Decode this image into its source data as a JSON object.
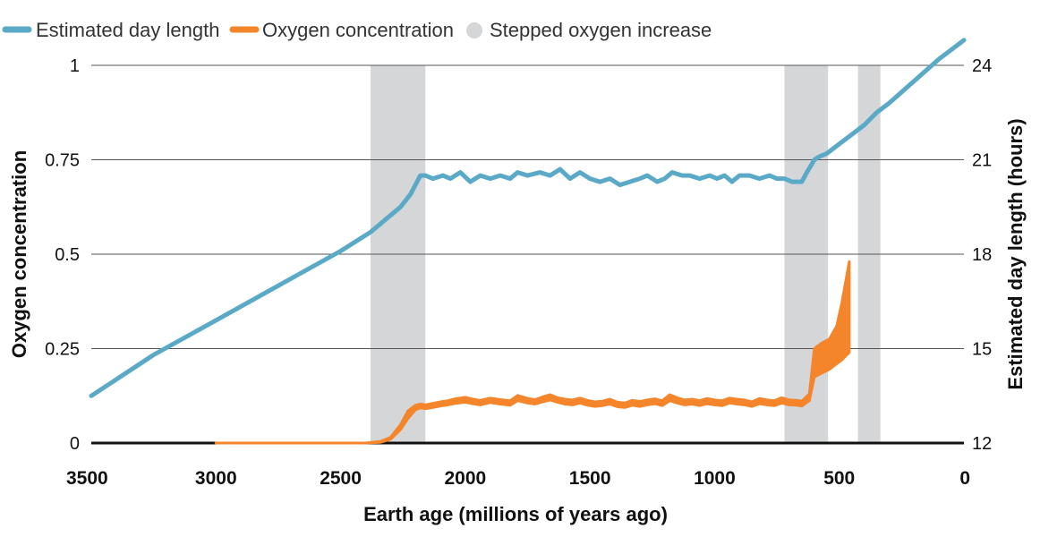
{
  "chart_data": {
    "type": "line",
    "title": "",
    "legend": [
      {
        "label": "Estimated day length",
        "color": "#5aa9c6",
        "shape": "line"
      },
      {
        "label": "Oxygen concentration",
        "color": "#f5852a",
        "shape": "line"
      },
      {
        "label": "Stepped oxygen increase",
        "color": "#d5d6d8",
        "shape": "circle"
      }
    ],
    "legend_position": "top-left",
    "xlabel": "Earth age (millions of years ago)",
    "ylabel_left": "Oxygen concentration",
    "ylabel_right": "Estimated day length (hours)",
    "xlim": [
      3500,
      0
    ],
    "xticks": [
      {
        "value": 3500,
        "label": "3500"
      },
      {
        "value": 3000,
        "label": "3000"
      },
      {
        "value": 2500,
        "label": "2500"
      },
      {
        "value": 2000,
        "label": "2000"
      },
      {
        "value": 1500,
        "label": "1500"
      },
      {
        "value": 1000,
        "label": "1000"
      },
      {
        "value": 500,
        "label": "500"
      },
      {
        "value": 0,
        "label": "0"
      }
    ],
    "ylim_left": [
      0,
      1
    ],
    "yticks_left": [
      {
        "value": 0,
        "label": "0"
      },
      {
        "value": 0.25,
        "label": "0.25"
      },
      {
        "value": 0.5,
        "label": "0.5"
      },
      {
        "value": 0.75,
        "label": "0.75"
      },
      {
        "value": 1,
        "label": "1"
      }
    ],
    "ylim_right": [
      12,
      24
    ],
    "yticks_right": [
      {
        "value": 12,
        "label": "12"
      },
      {
        "value": 15,
        "label": "15"
      },
      {
        "value": 18,
        "label": "18"
      },
      {
        "value": 21,
        "label": "21"
      },
      {
        "value": 24,
        "label": "24"
      }
    ],
    "grid": "horizontal",
    "stepped_oxygen_periods": [
      {
        "start": 2380,
        "end": 2160
      },
      {
        "start": 720,
        "end": 545
      },
      {
        "start": 425,
        "end": 335
      }
    ],
    "series": [
      {
        "name": "Estimated day length",
        "axis": "right",
        "color": "#5aa9c6",
        "x": [
          3500,
          3250,
          3000,
          2750,
          2500,
          2380,
          2320,
          2260,
          2220,
          2200,
          2180,
          2160,
          2130,
          2090,
          2060,
          2020,
          1980,
          1940,
          1900,
          1860,
          1820,
          1790,
          1750,
          1700,
          1660,
          1620,
          1580,
          1540,
          1500,
          1460,
          1420,
          1380,
          1340,
          1300,
          1270,
          1230,
          1200,
          1170,
          1130,
          1100,
          1060,
          1020,
          990,
          960,
          930,
          900,
          860,
          820,
          780,
          750,
          720,
          690,
          650,
          630,
          600,
          580,
          550,
          500,
          450,
          400,
          350,
          300,
          200,
          100,
          0
        ],
        "values": [
          13.5,
          14.8,
          15.9,
          17.0,
          18.1,
          18.7,
          19.1,
          19.5,
          19.9,
          20.2,
          20.5,
          20.5,
          20.4,
          20.5,
          20.4,
          20.6,
          20.3,
          20.5,
          20.4,
          20.5,
          20.4,
          20.6,
          20.5,
          20.6,
          20.5,
          20.7,
          20.4,
          20.6,
          20.4,
          20.3,
          20.4,
          20.2,
          20.3,
          20.4,
          20.5,
          20.3,
          20.4,
          20.6,
          20.5,
          20.5,
          20.4,
          20.5,
          20.4,
          20.5,
          20.3,
          20.5,
          20.5,
          20.4,
          20.5,
          20.4,
          20.4,
          20.3,
          20.3,
          20.6,
          21.0,
          21.1,
          21.2,
          21.5,
          21.8,
          22.1,
          22.5,
          22.8,
          23.5,
          24.2,
          24.8
        ]
      },
      {
        "name": "Oxygen concentration",
        "axis": "left",
        "color": "#f5852a",
        "x": [
          3000,
          2500,
          2400,
          2340,
          2300,
          2260,
          2230,
          2200,
          2180,
          2160,
          2130,
          2100,
          2070,
          2040,
          2000,
          1970,
          1940,
          1900,
          1860,
          1820,
          1790,
          1750,
          1720,
          1690,
          1660,
          1630,
          1600,
          1570,
          1540,
          1510,
          1480,
          1450,
          1420,
          1390,
          1360,
          1330,
          1300,
          1270,
          1240,
          1210,
          1180,
          1150,
          1120,
          1090,
          1060,
          1030,
          1000,
          970,
          940,
          910,
          880,
          850,
          820,
          790,
          760,
          730,
          700,
          670,
          650,
          620,
          600,
          570,
          540,
          510,
          490,
          460
        ],
        "lower": [
          0,
          0,
          0,
          0.002,
          0.01,
          0.035,
          0.065,
          0.088,
          0.093,
          0.091,
          0.094,
          0.098,
          0.101,
          0.105,
          0.108,
          0.104,
          0.101,
          0.107,
          0.103,
          0.1,
          0.112,
          0.106,
          0.103,
          0.109,
          0.114,
          0.108,
          0.103,
          0.101,
          0.106,
          0.1,
          0.097,
          0.099,
          0.103,
          0.096,
          0.094,
          0.1,
          0.097,
          0.101,
          0.104,
          0.099,
          0.112,
          0.106,
          0.101,
          0.103,
          0.099,
          0.104,
          0.101,
          0.099,
          0.106,
          0.103,
          0.101,
          0.097,
          0.104,
          0.101,
          0.099,
          0.106,
          0.101,
          0.1,
          0.098,
          0.112,
          0.175,
          0.185,
          0.195,
          0.21,
          0.22,
          0.24
        ],
        "upper": [
          0,
          0,
          0,
          0.004,
          0.015,
          0.048,
          0.085,
          0.1,
          0.103,
          0.101,
          0.105,
          0.109,
          0.112,
          0.117,
          0.121,
          0.116,
          0.113,
          0.119,
          0.115,
          0.112,
          0.126,
          0.118,
          0.115,
          0.122,
          0.128,
          0.12,
          0.116,
          0.114,
          0.119,
          0.113,
          0.109,
          0.111,
          0.116,
          0.108,
          0.106,
          0.113,
          0.11,
          0.114,
          0.117,
          0.112,
          0.128,
          0.12,
          0.114,
          0.116,
          0.112,
          0.118,
          0.114,
          0.112,
          0.119,
          0.116,
          0.114,
          0.109,
          0.118,
          0.114,
          0.112,
          0.12,
          0.114,
          0.113,
          0.111,
          0.13,
          0.25,
          0.265,
          0.275,
          0.31,
          0.37,
          0.48
        ]
      }
    ]
  }
}
